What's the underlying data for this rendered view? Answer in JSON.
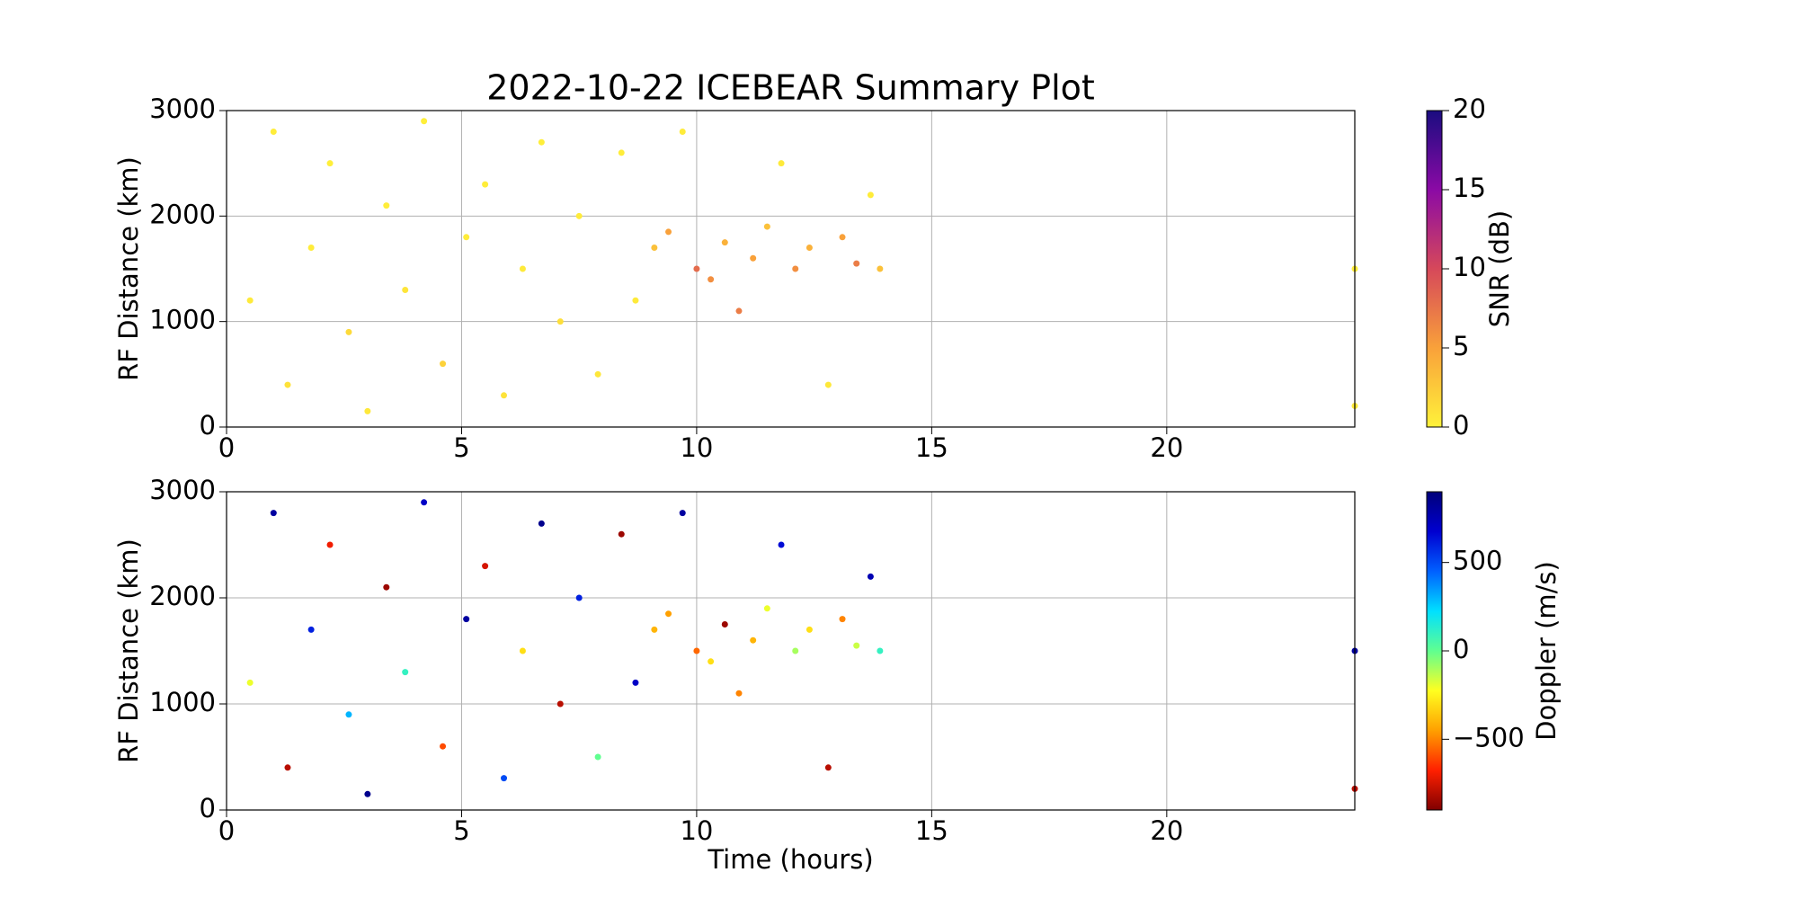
{
  "chart_data": [
    {
      "type": "scatter",
      "title": "2022-10-22 ICEBEAR Summary Plot",
      "ylabel": "RF Distance (km)",
      "xlim": [
        0,
        24
      ],
      "xticks": [
        0,
        5,
        10,
        15,
        20
      ],
      "ylim": [
        0,
        3000
      ],
      "yticks": [
        0,
        1000,
        2000,
        3000
      ],
      "grid": true,
      "series": [
        {
          "name": "SNR (dB)",
          "x": [
            0.5,
            1.0,
            1.3,
            1.8,
            2.2,
            2.6,
            3.0,
            3.4,
            3.8,
            4.2,
            4.6,
            5.1,
            5.5,
            5.9,
            6.3,
            6.7,
            7.1,
            7.5,
            7.9,
            8.4,
            8.7,
            9.1,
            9.4,
            9.7,
            10.0,
            10.3,
            10.6,
            10.9,
            11.2,
            11.5,
            11.8,
            12.1,
            12.4,
            12.8,
            13.1,
            13.4,
            13.7,
            13.9,
            24.0,
            24.0
          ],
          "y": [
            1200,
            2800,
            400,
            1700,
            2500,
            900,
            150,
            2100,
            1300,
            2900,
            600,
            1800,
            2300,
            300,
            1500,
            2700,
            1000,
            2000,
            500,
            2600,
            1200,
            1700,
            1850,
            2800,
            1500,
            1400,
            1750,
            1100,
            1600,
            1900,
            2500,
            1500,
            1700,
            400,
            1800,
            1550,
            2200,
            1500,
            1500,
            200
          ],
          "c": [
            0.5,
            0.3,
            1,
            0.4,
            0.2,
            1.5,
            0.6,
            0.3,
            0.8,
            0.2,
            2,
            0.4,
            0.3,
            0.9,
            0.5,
            0.2,
            1.2,
            0.4,
            0.7,
            0.3,
            0.5,
            3,
            5,
            0.4,
            8,
            6,
            4,
            7,
            5,
            3,
            0.5,
            6,
            4,
            0.6,
            5,
            7,
            0.4,
            3,
            0.3,
            0.5
          ]
        }
      ],
      "colorbar": {
        "clim": [
          0,
          20
        ],
        "ticks": [
          0,
          5,
          10,
          15,
          20
        ],
        "colormap": [
          "#fff23a",
          "#f9a13a",
          "#d6485a",
          "#8b0aa5",
          "#1a0c80"
        ]
      }
    },
    {
      "type": "scatter",
      "ylabel": "RF Distance (km)",
      "xlabel": "Time (hours)",
      "xlim": [
        0,
        24
      ],
      "xticks": [
        0,
        5,
        10,
        15,
        20
      ],
      "ylim": [
        0,
        3000
      ],
      "yticks": [
        0,
        1000,
        2000,
        3000
      ],
      "grid": true,
      "series": [
        {
          "name": "Doppler (m/s)",
          "x": [
            0.5,
            1.0,
            1.3,
            1.8,
            2.2,
            2.6,
            3.0,
            3.4,
            3.8,
            4.2,
            4.6,
            5.1,
            5.5,
            5.9,
            6.3,
            6.7,
            7.1,
            7.5,
            7.9,
            8.4,
            8.7,
            9.1,
            9.4,
            9.7,
            10.0,
            10.3,
            10.6,
            10.9,
            11.2,
            11.5,
            11.8,
            12.1,
            12.4,
            12.8,
            13.1,
            13.4,
            13.7,
            13.9,
            24.0,
            24.0
          ],
          "y": [
            1200,
            2800,
            400,
            1700,
            2500,
            900,
            150,
            2100,
            1300,
            2900,
            600,
            1800,
            2300,
            300,
            1500,
            2700,
            1000,
            2000,
            500,
            2600,
            1200,
            1700,
            1850,
            2800,
            1500,
            1400,
            1750,
            1100,
            1600,
            1900,
            2500,
            1500,
            1700,
            400,
            1800,
            1550,
            2200,
            1500,
            1500,
            200
          ],
          "c": [
            -200,
            800,
            -800,
            600,
            -700,
            300,
            850,
            -850,
            100,
            700,
            -600,
            800,
            -750,
            500,
            -300,
            850,
            -800,
            600,
            0,
            -850,
            700,
            -400,
            -450,
            800,
            -550,
            -300,
            -850,
            -500,
            -400,
            -200,
            650,
            -100,
            -300,
            -800,
            -500,
            -150,
            750,
            100,
            800,
            -800
          ]
        }
      ],
      "colorbar": {
        "clim": [
          -900,
          900
        ],
        "ticks": [
          {
            "value": -500,
            "label": "−500"
          },
          0,
          500
        ],
        "colormap": [
          "#800000",
          "#ff2000",
          "#ffa000",
          "#ffff20",
          "#60ff90",
          "#00e0ff",
          "#0060ff",
          "#0000d0",
          "#00007a"
        ]
      }
    }
  ]
}
